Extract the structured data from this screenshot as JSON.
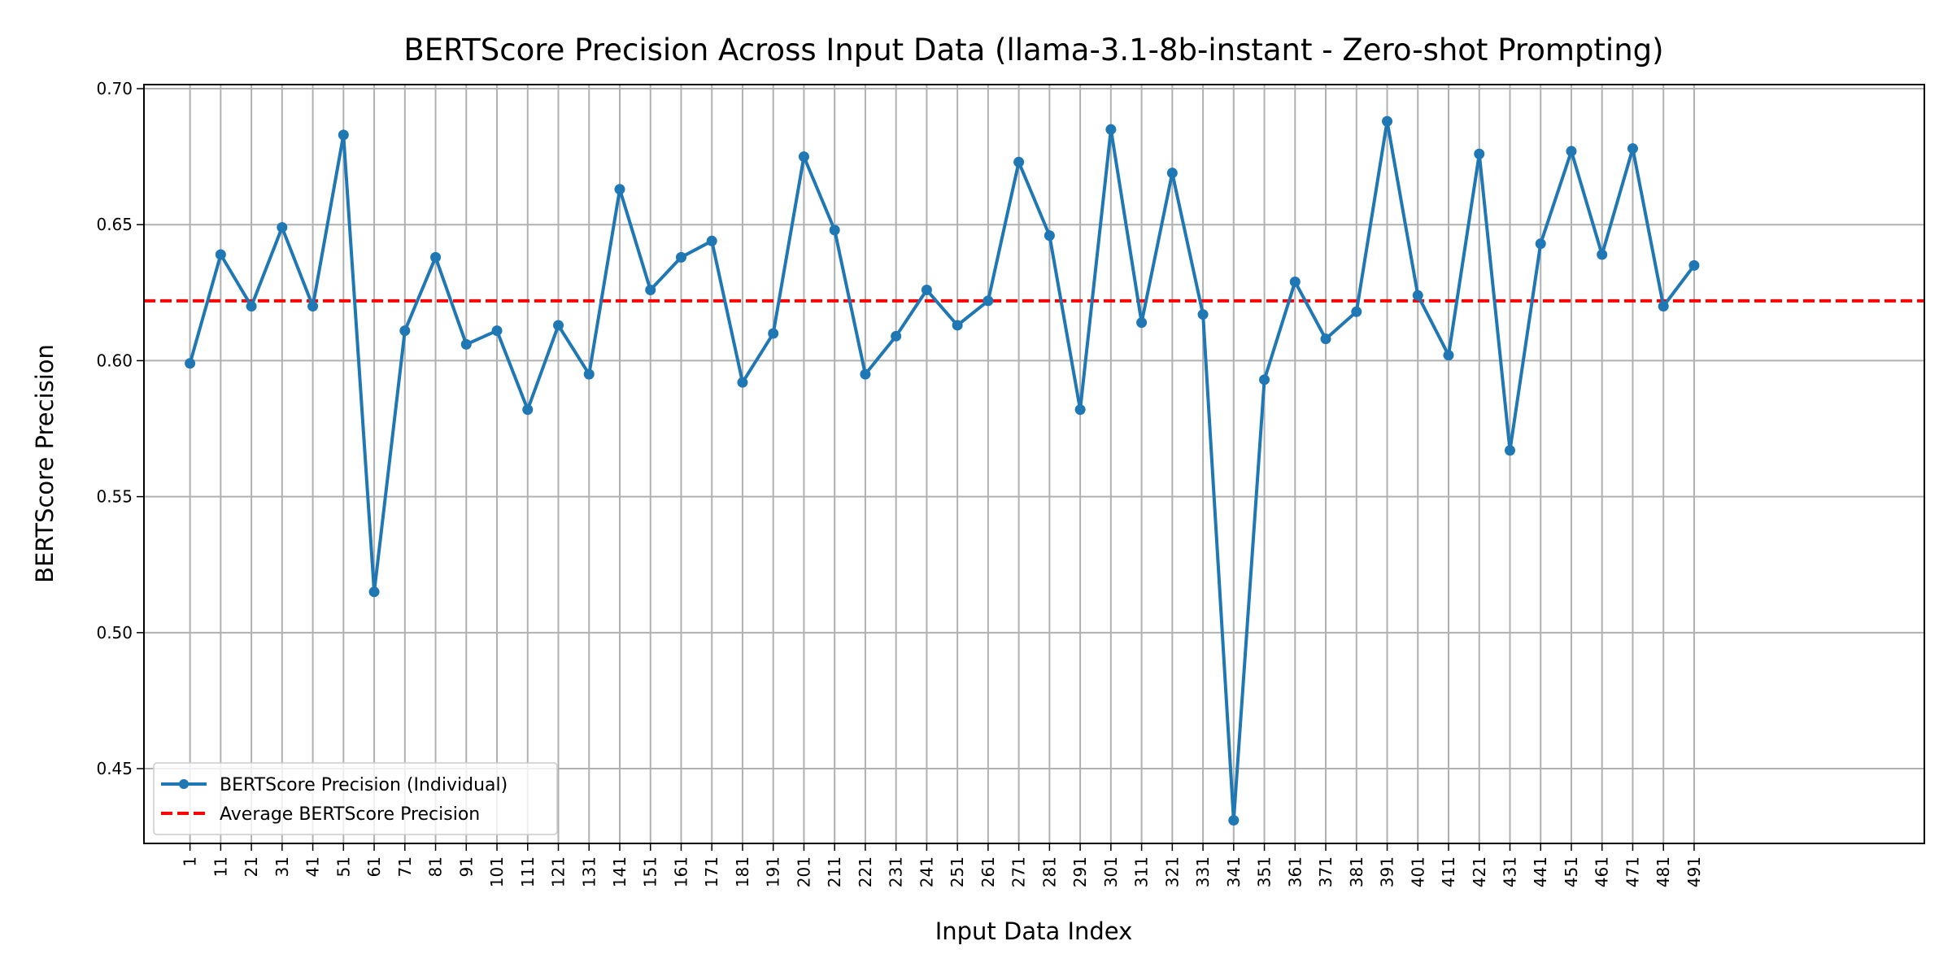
{
  "chart_data": {
    "type": "line",
    "title": "BERTScore Precision Across Input Data (llama-3.1-8b-instant - Zero-shot Prompting)",
    "xlabel": "Input Data Index",
    "ylabel": "BERTScore Precision",
    "ylim": [
      0.4225,
      0.7015
    ],
    "xlim": [
      -1.5,
      56.5
    ],
    "yticks": [
      0.45,
      0.5,
      0.55,
      0.6,
      0.65,
      0.7
    ],
    "ytick_labels": [
      "0.45",
      "0.50",
      "0.55",
      "0.60",
      "0.65",
      "0.70"
    ],
    "categories": [
      "1",
      "11",
      "21",
      "31",
      "41",
      "51",
      "61",
      "71",
      "81",
      "91",
      "101",
      "111",
      "121",
      "131",
      "141",
      "151",
      "161",
      "171",
      "181",
      "191",
      "201",
      "211",
      "221",
      "231",
      "241",
      "251",
      "261",
      "271",
      "281",
      "291",
      "301",
      "311",
      "321",
      "331",
      "341",
      "351",
      "361",
      "371",
      "381",
      "391",
      "401",
      "411",
      "421",
      "431",
      "441",
      "451",
      "461",
      "471",
      "481",
      "491"
    ],
    "grid": true,
    "legend_position": "lower-left",
    "series": [
      {
        "name": "BERTScore Precision (Individual)",
        "color": "#1f77b4",
        "style": "solid-with-markers",
        "values": [
          0.599,
          0.639,
          0.62,
          0.649,
          0.62,
          0.683,
          0.515,
          0.611,
          0.638,
          0.606,
          0.611,
          0.582,
          0.613,
          0.595,
          0.663,
          0.626,
          0.638,
          0.644,
          0.592,
          0.61,
          0.675,
          0.648,
          0.595,
          0.609,
          0.626,
          0.613,
          0.622,
          0.673,
          0.646,
          0.582,
          0.685,
          0.614,
          0.669,
          0.617,
          0.431,
          0.593,
          0.629,
          0.608,
          0.618,
          0.688,
          0.624,
          0.602,
          0.676,
          0.567,
          0.643,
          0.677,
          0.639,
          0.678,
          0.62,
          0.635
        ]
      },
      {
        "name": "Average BERTScore Precision",
        "color": "#ff0000",
        "style": "dashed",
        "value": 0.622
      }
    ]
  }
}
